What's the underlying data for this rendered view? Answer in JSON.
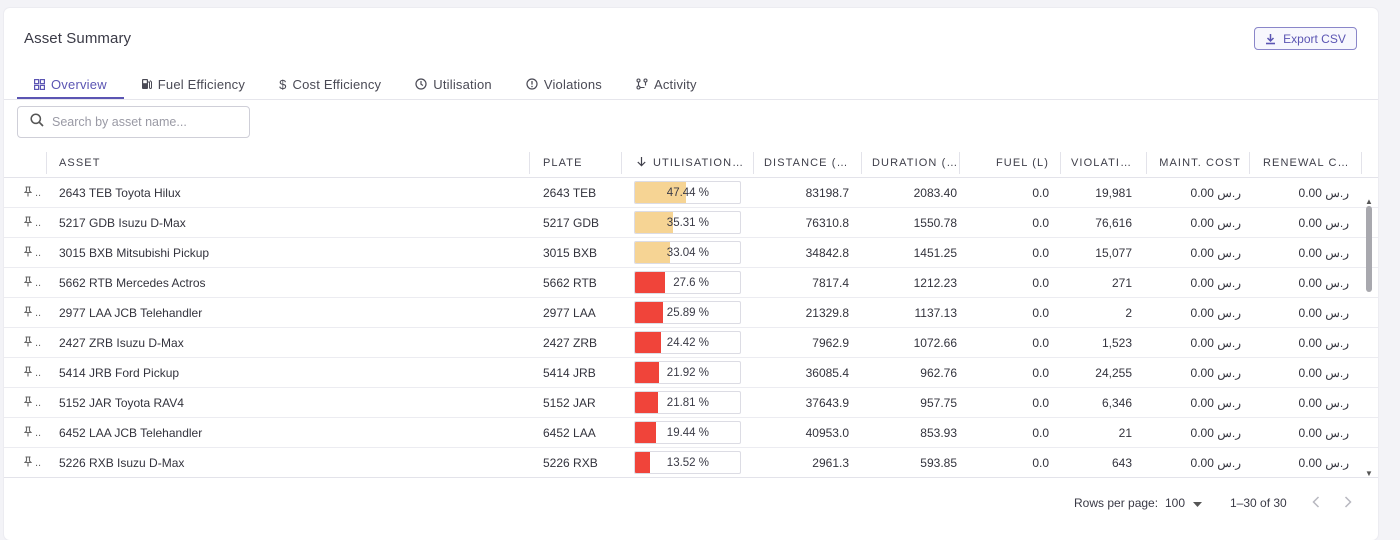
{
  "page": {
    "title": "Asset Summary"
  },
  "toolbar": {
    "export_label": "Export CSV",
    "export_icon": "download-icon"
  },
  "tabs": [
    {
      "label": "Overview",
      "icon": "grid-icon",
      "active": true
    },
    {
      "label": "Fuel Efficiency",
      "icon": "fuel-pump-icon",
      "active": false
    },
    {
      "label": "Cost Efficiency",
      "icon": "dollar-icon",
      "active": false
    },
    {
      "label": "Utilisation",
      "icon": "clock-icon",
      "active": false
    },
    {
      "label": "Violations",
      "icon": "alert-circle-icon",
      "active": false
    },
    {
      "label": "Activity",
      "icon": "activity-icon",
      "active": false
    }
  ],
  "search": {
    "placeholder": "Search by asset name..."
  },
  "table": {
    "columns": {
      "asset": "ASSET",
      "plate": "PLATE",
      "utilisation": "UTILISATION…",
      "distance": "DISTANCE (…",
      "duration": "DURATION (…",
      "fuel": "FUEL (L)",
      "violations": "VIOLATI…",
      "maint": "MAINT. COST",
      "renewal": "RENEWAL C…"
    },
    "sort": {
      "column": "utilisation",
      "direction": "desc"
    },
    "pin_ellipsis": "..",
    "colors": {
      "high": "#f6d494",
      "low": "#f0443a"
    },
    "rows": [
      {
        "asset": "2643 TEB Toyota Hilux",
        "plate": "2643 TEB",
        "util_pct": 47.44,
        "util_label": "47.44 %",
        "level": "high",
        "distance": "83198.7",
        "duration": "2083.40",
        "fuel": "0.0",
        "violations": "19,981",
        "maint": "0.00 ر.س",
        "renewal": "0.00 ر.س"
      },
      {
        "asset": "5217 GDB Isuzu D-Max",
        "plate": "5217 GDB",
        "util_pct": 35.31,
        "util_label": "35.31 %",
        "level": "high",
        "distance": "76310.8",
        "duration": "1550.78",
        "fuel": "0.0",
        "violations": "76,616",
        "maint": "0.00 ر.س",
        "renewal": "0.00 ر.س"
      },
      {
        "asset": "3015 BXB Mitsubishi Pickup",
        "plate": "3015 BXB",
        "util_pct": 33.04,
        "util_label": "33.04 %",
        "level": "high",
        "distance": "34842.8",
        "duration": "1451.25",
        "fuel": "0.0",
        "violations": "15,077",
        "maint": "0.00 ر.س",
        "renewal": "0.00 ر.س"
      },
      {
        "asset": "5662 RTB Mercedes Actros",
        "plate": "5662 RTB",
        "util_pct": 27.6,
        "util_label": "27.6 %",
        "level": "low",
        "distance": "7817.4",
        "duration": "1212.23",
        "fuel": "0.0",
        "violations": "271",
        "maint": "0.00 ر.س",
        "renewal": "0.00 ر.س"
      },
      {
        "asset": "2977 LAA JCB Telehandler",
        "plate": "2977 LAA",
        "util_pct": 25.89,
        "util_label": "25.89 %",
        "level": "low",
        "distance": "21329.8",
        "duration": "1137.13",
        "fuel": "0.0",
        "violations": "2",
        "maint": "0.00 ر.س",
        "renewal": "0.00 ر.س"
      },
      {
        "asset": "2427 ZRB Isuzu D-Max",
        "plate": "2427 ZRB",
        "util_pct": 24.42,
        "util_label": "24.42 %",
        "level": "low",
        "distance": "7962.9",
        "duration": "1072.66",
        "fuel": "0.0",
        "violations": "1,523",
        "maint": "0.00 ر.س",
        "renewal": "0.00 ر.س"
      },
      {
        "asset": "5414 JRB Ford Pickup",
        "plate": "5414 JRB",
        "util_pct": 21.92,
        "util_label": "21.92 %",
        "level": "low",
        "distance": "36085.4",
        "duration": "962.76",
        "fuel": "0.0",
        "violations": "24,255",
        "maint": "0.00 ر.س",
        "renewal": "0.00 ر.س"
      },
      {
        "asset": "5152 JAR Toyota RAV4",
        "plate": "5152 JAR",
        "util_pct": 21.81,
        "util_label": "21.81 %",
        "level": "low",
        "distance": "37643.9",
        "duration": "957.75",
        "fuel": "0.0",
        "violations": "6,346",
        "maint": "0.00 ر.س",
        "renewal": "0.00 ر.س"
      },
      {
        "asset": "6452 LAA JCB Telehandler",
        "plate": "6452 LAA",
        "util_pct": 19.44,
        "util_label": "19.44 %",
        "level": "low",
        "distance": "40953.0",
        "duration": "853.93",
        "fuel": "0.0",
        "violations": "21",
        "maint": "0.00 ر.س",
        "renewal": "0.00 ر.س"
      },
      {
        "asset": "5226 RXB Isuzu D-Max",
        "plate": "5226 RXB",
        "util_pct": 13.52,
        "util_label": "13.52 %",
        "level": "low",
        "distance": "2961.3",
        "duration": "593.85",
        "fuel": "0.0",
        "violations": "643",
        "maint": "0.00 ر.س",
        "renewal": "0.00 ر.س"
      }
    ]
  },
  "pagination": {
    "rows_per_page_label": "Rows per page:",
    "rows_per_page": "100",
    "range": "1–30 of 30"
  }
}
